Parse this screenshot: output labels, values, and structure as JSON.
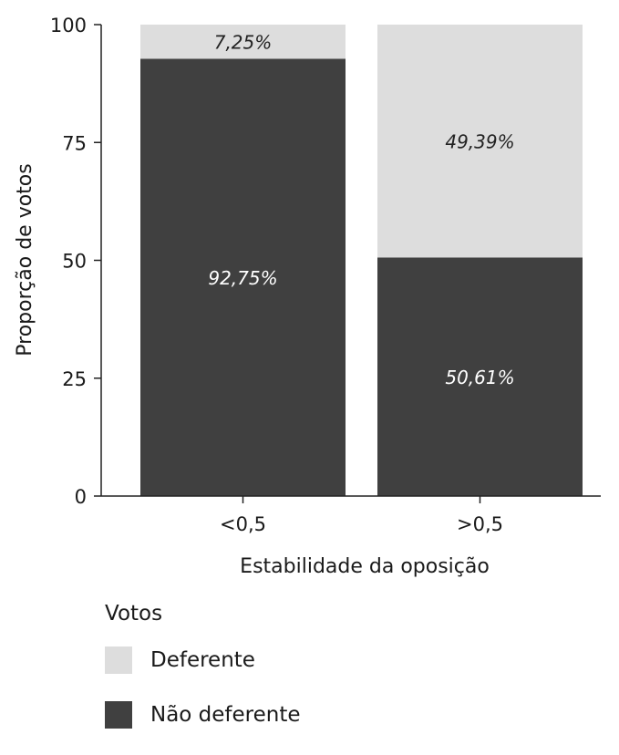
{
  "chart_data": {
    "type": "bar",
    "stacked": true,
    "percent_stacked": true,
    "categories": [
      "<0,5",
      ">0,5"
    ],
    "series": [
      {
        "name": "Não deferente",
        "values": [
          92.75,
          50.61
        ],
        "labels": [
          "92,75%",
          "50,61%"
        ],
        "color": "#404040",
        "label_color": "#ffffff"
      },
      {
        "name": "Deferente",
        "values": [
          7.25,
          49.39
        ],
        "labels": [
          "7,25%",
          "49,39%"
        ],
        "color": "#dddddd",
        "label_color": "#222222"
      }
    ],
    "xlabel": "Estabilidade da oposição",
    "ylabel": "Proporção de votos",
    "ylim": [
      0,
      100
    ],
    "yticks": [
      "0",
      "25",
      "50",
      "75",
      "100"
    ],
    "ytick_values": [
      0,
      25,
      50,
      75,
      100
    ],
    "grid": false,
    "legend": {
      "title": "Votos",
      "placement": "bottom-left",
      "order": [
        "Deferente",
        "Não deferente"
      ]
    }
  }
}
